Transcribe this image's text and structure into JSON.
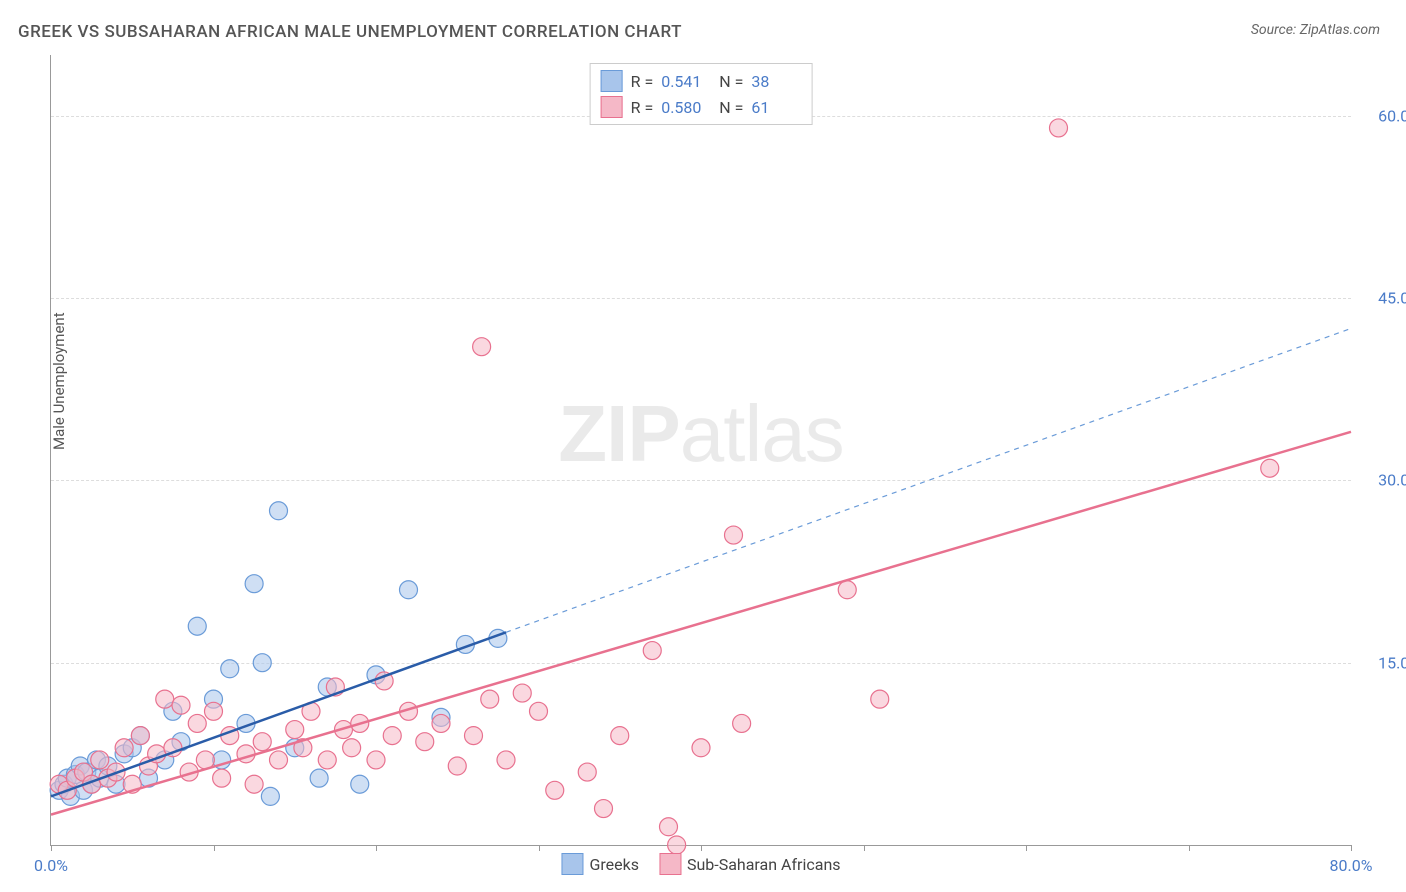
{
  "title": "GREEK VS SUBSAHARAN AFRICAN MALE UNEMPLOYMENT CORRELATION CHART",
  "source": "Source: ZipAtlas.com",
  "watermark_zip": "ZIP",
  "watermark_atlas": "atlas",
  "y_axis_label": "Male Unemployment",
  "chart": {
    "type": "scatter",
    "background_color": "#ffffff",
    "grid_color": "#dddddd",
    "axis_color": "#999999",
    "xlim": [
      0,
      80
    ],
    "ylim": [
      0,
      65
    ],
    "x_ticks": [
      0,
      10,
      20,
      30,
      40,
      50,
      60,
      70,
      80
    ],
    "x_tick_labels": {
      "0": "0.0%",
      "80": "80.0%"
    },
    "y_ticks": [
      15,
      30,
      45,
      60
    ],
    "y_tick_labels": {
      "15": "15.0%",
      "30": "30.0%",
      "45": "45.0%",
      "60": "60.0%"
    },
    "series": [
      {
        "name": "Greeks",
        "label": "Greeks",
        "color_fill": "#a8c5eb",
        "color_stroke": "#6a9bd8",
        "marker_radius": 9,
        "fill_opacity": 0.55,
        "R": "0.541",
        "N": "38",
        "trend": {
          "x1": 0,
          "y1": 4.0,
          "x2": 28,
          "y2": 17.5,
          "stroke": "#2a5ca8",
          "width": 2.5,
          "dash": "none"
        },
        "trend_ext": {
          "x1": 28,
          "y1": 17.5,
          "x2": 80,
          "y2": 42.5,
          "stroke": "#6a9bd8",
          "width": 1.2,
          "dash": "5,5"
        },
        "points": [
          [
            0.5,
            4.5
          ],
          [
            0.8,
            5.0
          ],
          [
            1.0,
            5.5
          ],
          [
            1.2,
            4.0
          ],
          [
            1.5,
            5.8
          ],
          [
            1.8,
            6.5
          ],
          [
            2.0,
            4.5
          ],
          [
            2.2,
            6.0
          ],
          [
            2.5,
            5.0
          ],
          [
            2.8,
            7.0
          ],
          [
            3.0,
            5.5
          ],
          [
            3.5,
            6.5
          ],
          [
            4.0,
            5.0
          ],
          [
            4.5,
            7.5
          ],
          [
            5.0,
            8.0
          ],
          [
            5.5,
            9.0
          ],
          [
            6.0,
            5.5
          ],
          [
            7.0,
            7.0
          ],
          [
            7.5,
            11.0
          ],
          [
            8.0,
            8.5
          ],
          [
            9.0,
            18.0
          ],
          [
            10.0,
            12.0
          ],
          [
            10.5,
            7.0
          ],
          [
            11.0,
            14.5
          ],
          [
            12.0,
            10.0
          ],
          [
            12.5,
            21.5
          ],
          [
            13.0,
            15.0
          ],
          [
            13.5,
            4.0
          ],
          [
            14.0,
            27.5
          ],
          [
            15.0,
            8.0
          ],
          [
            16.5,
            5.5
          ],
          [
            17.0,
            13.0
          ],
          [
            19.0,
            5.0
          ],
          [
            20.0,
            14.0
          ],
          [
            22.0,
            21.0
          ],
          [
            24.0,
            10.5
          ],
          [
            25.5,
            16.5
          ],
          [
            27.5,
            17.0
          ]
        ]
      },
      {
        "name": "Sub-Saharan Africans",
        "label": "Sub-Saharan Africans",
        "color_fill": "#f5b8c7",
        "color_stroke": "#e8718f",
        "marker_radius": 9,
        "fill_opacity": 0.55,
        "R": "0.580",
        "N": "61",
        "trend": {
          "x1": 0,
          "y1": 2.5,
          "x2": 80,
          "y2": 34.0,
          "stroke": "#e8718f",
          "width": 2.5,
          "dash": "none"
        },
        "points": [
          [
            0.5,
            5.0
          ],
          [
            1.0,
            4.5
          ],
          [
            1.5,
            5.5
          ],
          [
            2.0,
            6.0
          ],
          [
            2.5,
            5.0
          ],
          [
            3.0,
            7.0
          ],
          [
            3.5,
            5.5
          ],
          [
            4.0,
            6.0
          ],
          [
            4.5,
            8.0
          ],
          [
            5.0,
            5.0
          ],
          [
            5.5,
            9.0
          ],
          [
            6.0,
            6.5
          ],
          [
            6.5,
            7.5
          ],
          [
            7.0,
            12.0
          ],
          [
            7.5,
            8.0
          ],
          [
            8.0,
            11.5
          ],
          [
            8.5,
            6.0
          ],
          [
            9.0,
            10.0
          ],
          [
            9.5,
            7.0
          ],
          [
            10.0,
            11.0
          ],
          [
            10.5,
            5.5
          ],
          [
            11.0,
            9.0
          ],
          [
            12.0,
            7.5
          ],
          [
            12.5,
            5.0
          ],
          [
            13.0,
            8.5
          ],
          [
            14.0,
            7.0
          ],
          [
            15.0,
            9.5
          ],
          [
            15.5,
            8.0
          ],
          [
            16.0,
            11.0
          ],
          [
            17.0,
            7.0
          ],
          [
            17.5,
            13.0
          ],
          [
            18.0,
            9.5
          ],
          [
            18.5,
            8.0
          ],
          [
            19.0,
            10.0
          ],
          [
            20.0,
            7.0
          ],
          [
            20.5,
            13.5
          ],
          [
            21.0,
            9.0
          ],
          [
            22.0,
            11.0
          ],
          [
            23.0,
            8.5
          ],
          [
            24.0,
            10.0
          ],
          [
            25.0,
            6.5
          ],
          [
            26.0,
            9.0
          ],
          [
            26.5,
            41.0
          ],
          [
            27.0,
            12.0
          ],
          [
            28.0,
            7.0
          ],
          [
            29.0,
            12.5
          ],
          [
            30.0,
            11.0
          ],
          [
            31.0,
            4.5
          ],
          [
            33.0,
            6.0
          ],
          [
            34.0,
            3.0
          ],
          [
            35.0,
            9.0
          ],
          [
            37.0,
            16.0
          ],
          [
            38.0,
            1.5
          ],
          [
            40.0,
            8.0
          ],
          [
            42.0,
            25.5
          ],
          [
            42.5,
            10.0
          ],
          [
            49.0,
            21.0
          ],
          [
            51.0,
            12.0
          ],
          [
            62.0,
            59.0
          ],
          [
            75.0,
            31.0
          ],
          [
            38.5,
            0.0
          ]
        ]
      }
    ]
  },
  "legend_top": {
    "r_label": "R  =",
    "n_label": "N  ="
  },
  "legend_bottom": [
    {
      "swatch_fill": "#a8c5eb",
      "swatch_stroke": "#6a9bd8",
      "label_path": "chart.series.0.label"
    },
    {
      "swatch_fill": "#f5b8c7",
      "swatch_stroke": "#e8718f",
      "label_path": "chart.series.1.label"
    }
  ]
}
